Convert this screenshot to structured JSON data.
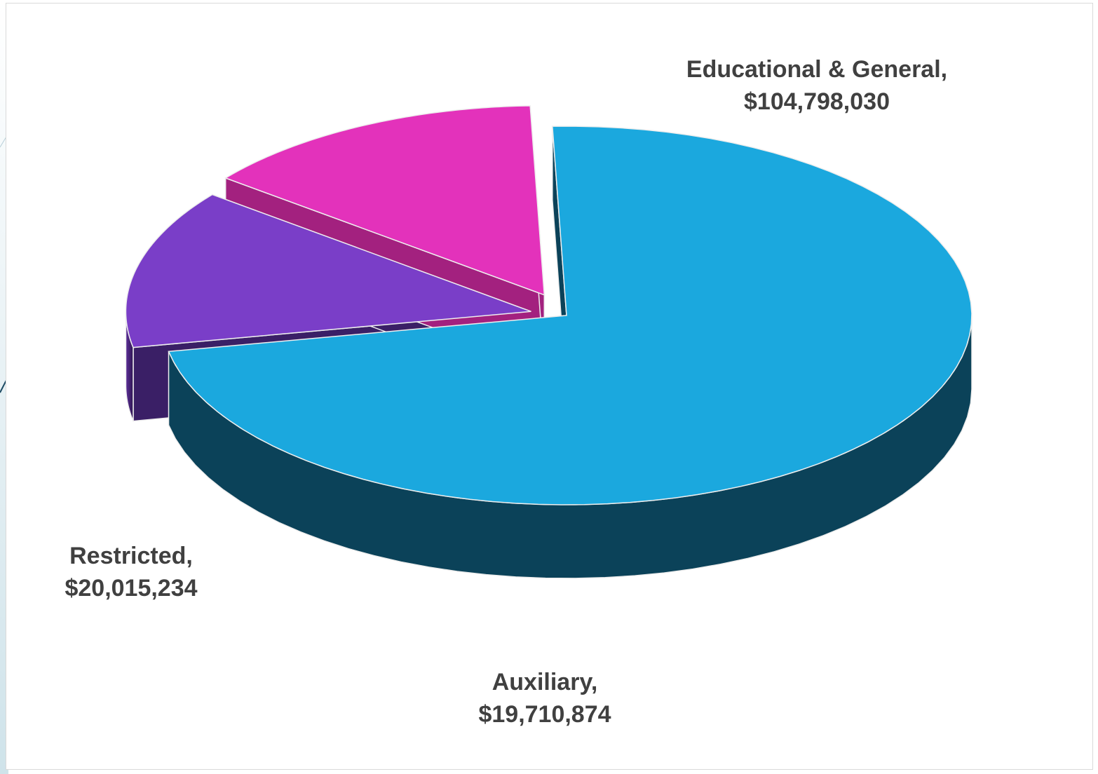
{
  "chart_data": {
    "type": "pie",
    "style": "3d-exploded",
    "categories": [
      "Educational & General",
      "Auxiliary",
      "Restricted"
    ],
    "values": [
      104798030,
      19710874,
      20015234
    ],
    "data_labels": [
      {
        "category": "Educational & General,",
        "value": "$104,798,030"
      },
      {
        "category": "Auxiliary,",
        "value": "$19,710,874"
      },
      {
        "category": "Restricted,",
        "value": "$20,015,234"
      }
    ],
    "colors": {
      "Educational & General": {
        "top": "#1ba8de",
        "side": "#0b4259"
      },
      "Auxiliary": {
        "top": "#7a3ec8",
        "side_light": "#5d2f9a",
        "side_dark": "#2e1650"
      },
      "Restricted": {
        "top": "#e332bb",
        "side_light": "#c42aa2",
        "side_dark": "#9f1f80"
      }
    },
    "legend": "none",
    "grid": false
  },
  "theme": {
    "label_color": "#404040",
    "accent_line": "#1c4a63",
    "frame_border": "#d9d9d9"
  }
}
